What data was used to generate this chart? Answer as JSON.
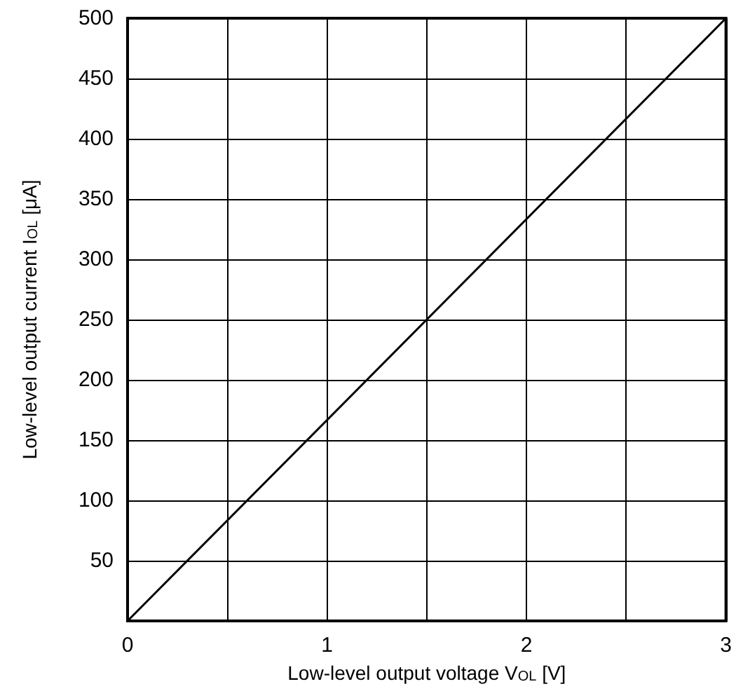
{
  "chart_data": {
    "type": "line",
    "xlabel": "Low-level output voltage V$_{OL}$ [V]",
    "ylabel": "Low-level output current I$_{OL}$ [μA]",
    "x": [
      0,
      3
    ],
    "series": [
      {
        "color": "#000000",
        "values": [
          0,
          500
        ]
      }
    ],
    "xlim": [
      0,
      3
    ],
    "ylim": [
      0,
      500
    ],
    "xticks": [
      0,
      {
        "value": 0.5,
        "label": null
      },
      1,
      {
        "value": 1.5,
        "label": null
      },
      2,
      {
        "value": 2.5,
        "label": null
      },
      3
    ],
    "yticks": [
      {
        "value": 0,
        "label": null
      },
      50,
      100,
      150,
      200,
      250,
      300,
      350,
      400,
      450,
      500
    ],
    "grid": true,
    "marker": "none",
    "line_style": "solid"
  }
}
